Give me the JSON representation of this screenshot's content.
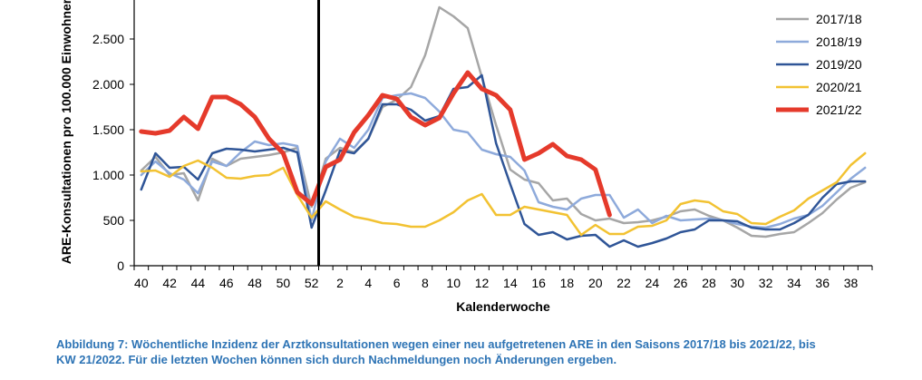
{
  "chart_data": {
    "type": "line",
    "xlabel": "Kalenderwoche",
    "ylabel": "ARE-Konsultationen pro 100.000 Einwohner",
    "ylim": [
      0,
      2900
    ],
    "yticks": [
      0,
      500,
      1000,
      1500,
      2000,
      2500
    ],
    "ytick_labels": [
      "0",
      "500",
      "1.000",
      "1.500",
      "2.000",
      "2.500"
    ],
    "weeks": [
      40,
      41,
      42,
      43,
      44,
      45,
      46,
      47,
      48,
      49,
      50,
      51,
      52,
      1,
      2,
      3,
      4,
      5,
      6,
      7,
      8,
      9,
      10,
      11,
      12,
      13,
      14,
      15,
      16,
      17,
      18,
      19,
      20,
      21,
      22,
      23,
      24,
      25,
      26,
      27,
      28,
      29,
      30,
      31,
      32,
      33,
      34,
      35,
      36,
      37,
      38,
      39
    ],
    "xtick_labels": [
      "40",
      "42",
      "44",
      "46",
      "48",
      "50",
      "52",
      "2",
      "4",
      "6",
      "8",
      "10",
      "12",
      "14",
      "16",
      "18",
      "20",
      "22",
      "24",
      "26",
      "28",
      "30",
      "32",
      "34",
      "36",
      "38"
    ],
    "year_boundary_after_week": 52,
    "legend_position": "top-right",
    "series": [
      {
        "name": "2017/18",
        "color": "#a6a6a6",
        "width": 2.5,
        "values": [
          1050,
          1200,
          1000,
          1020,
          720,
          1180,
          1100,
          1180,
          1200,
          1220,
          1250,
          1300,
          650,
          1180,
          1300,
          1250,
          1400,
          1750,
          1830,
          1970,
          2320,
          2850,
          2750,
          2620,
          2080,
          1550,
          1060,
          950,
          910,
          720,
          740,
          570,
          500,
          520,
          470,
          480,
          500,
          540,
          600,
          620,
          550,
          500,
          420,
          330,
          320,
          350,
          370,
          470,
          580,
          730,
          860,
          920
        ]
      },
      {
        "name": "2018/19",
        "color": "#8eaadb",
        "width": 2.5,
        "values": [
          1000,
          1150,
          1020,
          950,
          800,
          1150,
          1100,
          1250,
          1370,
          1330,
          1350,
          1320,
          500,
          1150,
          1400,
          1300,
          1500,
          1850,
          1880,
          1900,
          1850,
          1700,
          1500,
          1470,
          1280,
          1230,
          1200,
          1050,
          700,
          650,
          620,
          740,
          780,
          780,
          530,
          620,
          470,
          550,
          500,
          510,
          520,
          500,
          460,
          430,
          420,
          460,
          520,
          560,
          660,
          810,
          960,
          1080
        ]
      },
      {
        "name": "2019/20",
        "color": "#2f5597",
        "width": 2.5,
        "values": [
          840,
          1240,
          1080,
          1090,
          950,
          1240,
          1290,
          1280,
          1260,
          1280,
          1300,
          1250,
          420,
          830,
          1270,
          1240,
          1400,
          1780,
          1780,
          1720,
          1600,
          1650,
          1950,
          1970,
          2100,
          1350,
          900,
          460,
          340,
          370,
          290,
          330,
          340,
          210,
          280,
          210,
          250,
          300,
          370,
          400,
          500,
          500,
          490,
          420,
          400,
          400,
          470,
          560,
          750,
          900,
          930,
          930
        ]
      },
      {
        "name": "2020/21",
        "color": "#f2c232",
        "width": 2.5,
        "values": [
          1040,
          1050,
          980,
          1100,
          1160,
          1080,
          970,
          960,
          990,
          1000,
          1080,
          780,
          530,
          710,
          620,
          540,
          510,
          470,
          460,
          430,
          430,
          500,
          590,
          720,
          790,
          560,
          560,
          650,
          620,
          590,
          560,
          340,
          450,
          350,
          350,
          430,
          440,
          500,
          680,
          720,
          700,
          600,
          570,
          470,
          460,
          540,
          610,
          740,
          830,
          920,
          1110,
          1240
        ]
      },
      {
        "name": "2021/22",
        "color": "#e53a2b",
        "width": 5,
        "values": [
          1480,
          1460,
          1490,
          1640,
          1510,
          1860,
          1860,
          1780,
          1640,
          1400,
          1240,
          810,
          680,
          1090,
          1170,
          1470,
          1660,
          1880,
          1840,
          1640,
          1550,
          1630,
          1900,
          2130,
          1950,
          1880,
          1720,
          1170,
          1240,
          1340,
          1210,
          1170,
          1060,
          560
        ]
      }
    ]
  },
  "caption": {
    "line1": "Abbildung 7: Wöchentliche Inzidenz der Arztkonsultationen wegen einer neu aufgetretenen ARE in den Saisons 2017/18 bis 2021/22, bis",
    "line2": "KW 21/2022. Für die letzten Wochen können sich durch Nachmeldungen noch Änderungen ergeben."
  }
}
